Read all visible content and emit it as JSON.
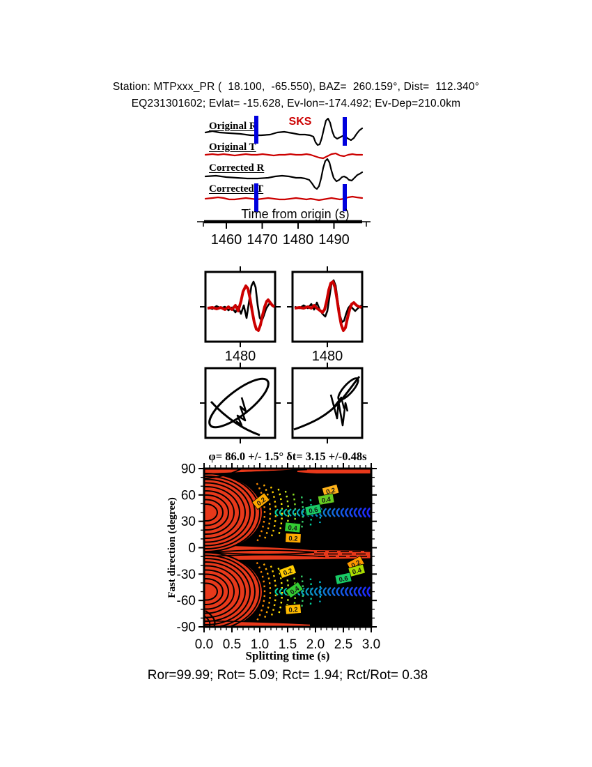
{
  "header": {
    "line1": "Station: MTPxxx_PR (  18.100,  -65.550), BAZ=  260.159°, Dist=  112.340°",
    "line2": "EQ231301602; Evlat= -15.628, Ev-lon=-174.492; Ev-Dep=210.0km"
  },
  "seismograms": {
    "phase_label": "SKS",
    "labels": [
      "Original R",
      "Original T",
      "Corrected R",
      "Corrected T"
    ],
    "axis_label": "Time from origin (s)",
    "ticks": [
      "1460",
      "1470",
      "1480",
      "1490"
    ],
    "colors": {
      "radial": "#000000",
      "transverse": "#cc0000",
      "window": "#0000dd"
    }
  },
  "mid_panels": {
    "wave_left_tick": "1480",
    "wave_right_tick": "1480"
  },
  "chart_data": {
    "type": "heatmap",
    "title": "φ= 86.0 +/- 1.5° δt= 3.15 +/-0.48s",
    "xlabel": "Splitting time (s)",
    "ylabel": "Fast direction (degree)",
    "xlim": [
      0.0,
      3.0
    ],
    "ylim": [
      -90,
      90
    ],
    "xticks": [
      "0.0",
      "0.5",
      "1.0",
      "1.5",
      "2.0",
      "2.5",
      "3.0"
    ],
    "yticks": [
      "90",
      "60",
      "30",
      "0",
      "-30",
      "-60",
      "-90"
    ],
    "result": {
      "phi_deg": 86.0,
      "phi_err_deg": 1.5,
      "dt_s": 3.15,
      "dt_err_s": 0.48
    },
    "lobe_centers_deg": [
      40,
      -50
    ],
    "palette": {
      "high": "#e8391b",
      "low": "#000000",
      "fan": [
        "#ff8800",
        "#ffaa00",
        "#ffcc00",
        "#ffee00",
        "#ccee22",
        "#88dd22",
        "#33cc66",
        "#00cc99",
        "#00bbcc"
      ],
      "chain_start": "#00d7aa",
      "chain_end": "#1e28ff"
    },
    "contour_labels": [
      {
        "text": "0.2",
        "t": 1.02,
        "phi": 53,
        "bg": "#ffaa00",
        "rot": -38
      },
      {
        "text": "0.2",
        "t": 2.27,
        "phi": 65,
        "bg": "#ffb31a",
        "rot": -15
      },
      {
        "text": "0.4",
        "t": 2.19,
        "phi": 55,
        "bg": "#66cc22",
        "rot": -10
      },
      {
        "text": "0.6",
        "t": 1.96,
        "phi": 43,
        "bg": "#19cc66",
        "rot": -12
      },
      {
        "text": "0.4",
        "t": 1.59,
        "phi": 23,
        "bg": "#33cc33",
        "rot": 6
      },
      {
        "text": "0.2",
        "t": 1.6,
        "phi": 11,
        "bg": "#ffaa00",
        "rot": 3
      },
      {
        "text": "0.2",
        "t": 1.5,
        "phi": -27,
        "bg": "#ffcc00",
        "rot": -20
      },
      {
        "text": "0.2",
        "t": 2.72,
        "phi": -18,
        "bg": "#ff9900",
        "rot": -28
      },
      {
        "text": "0.4",
        "t": 2.74,
        "phi": -26,
        "bg": "#aadd00",
        "rot": -15
      },
      {
        "text": "0.6",
        "t": 2.5,
        "phi": -35,
        "bg": "#19cc66",
        "rot": -12
      },
      {
        "text": "0.4",
        "t": 1.62,
        "phi": -48,
        "bg": "#33cc33",
        "rot": -35
      },
      {
        "text": "0.2",
        "t": 1.6,
        "phi": -70,
        "bg": "#ffbb00",
        "rot": -5
      }
    ]
  },
  "stats_line": "Ror=99.99; Rot= 5.09; Rct= 1.94; Rct/Rot= 0.38"
}
